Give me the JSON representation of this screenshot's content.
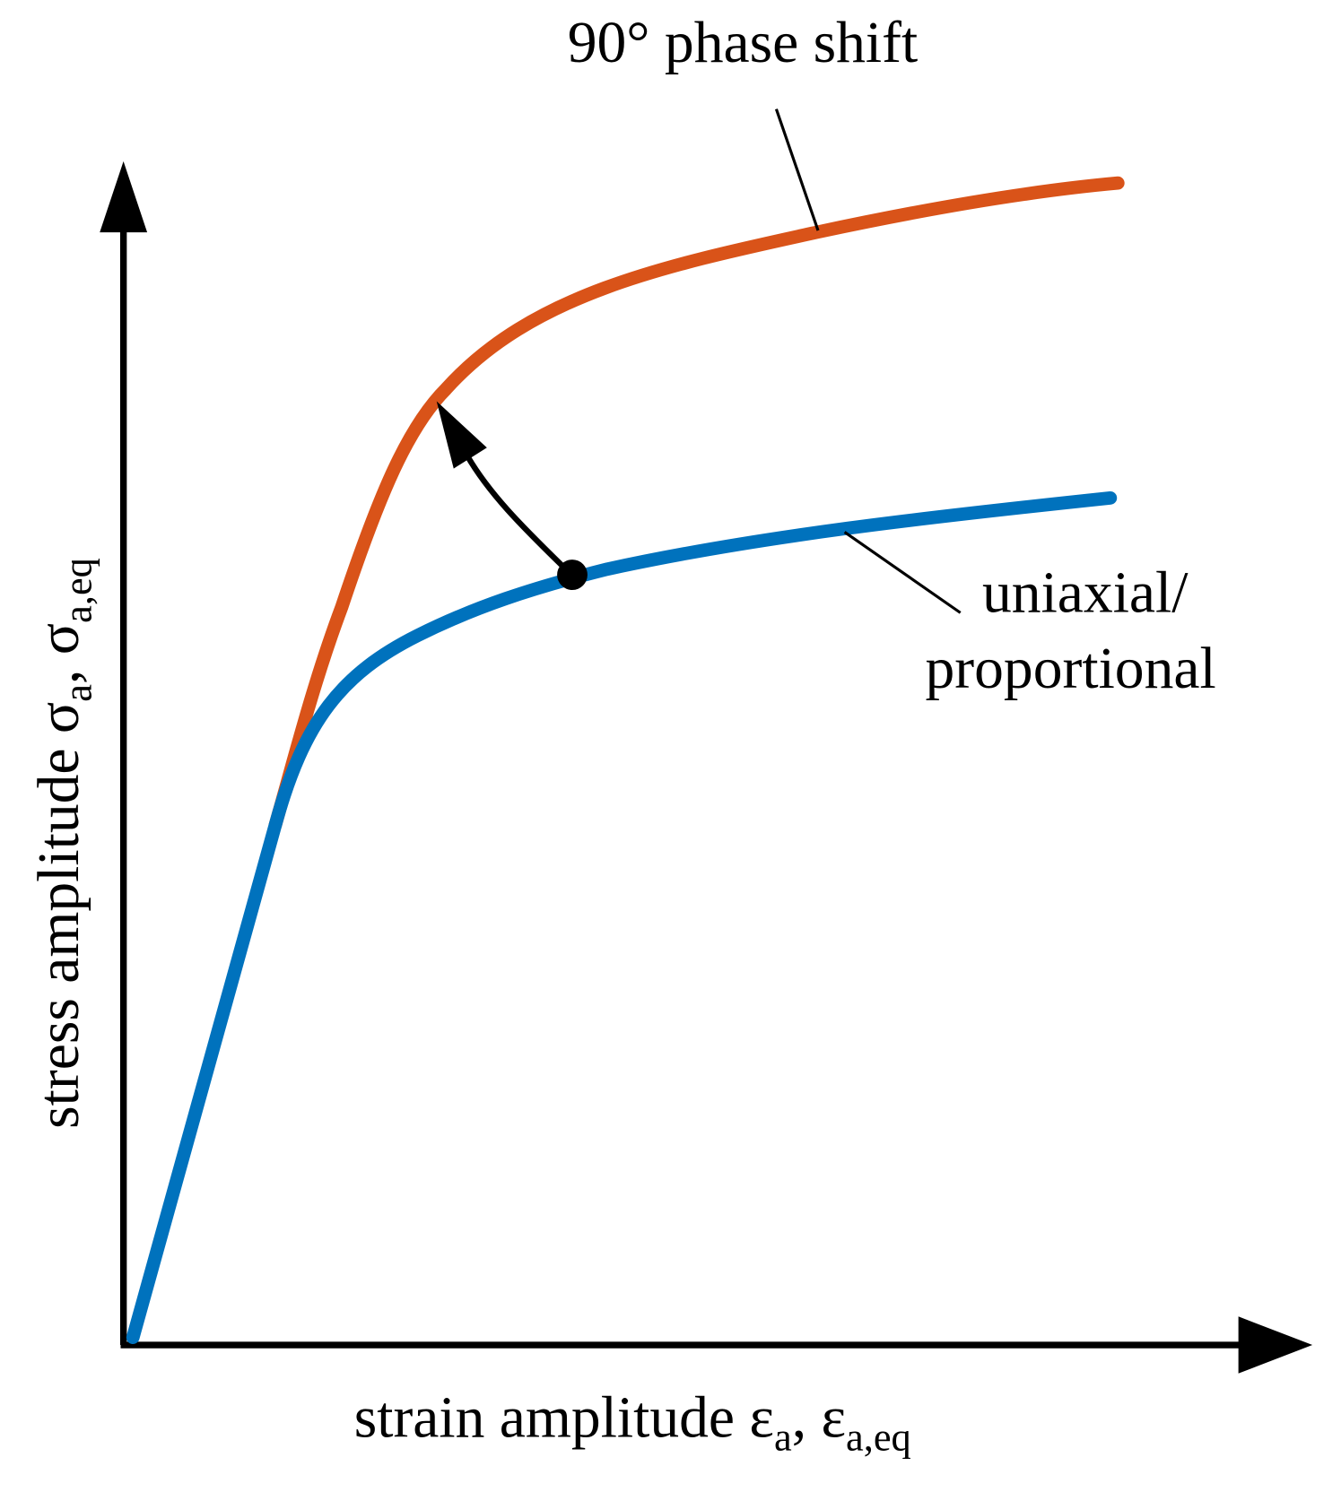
{
  "annotations": {
    "upper_curve": "90° phase shift",
    "lower_curve_line1": "uniaxial/",
    "lower_curve_line2": "proportional"
  },
  "y_axis_label": {
    "main": "stress amplitude σ",
    "sub1": "a",
    "sep": ", σ",
    "sub2": "a,eq"
  },
  "x_axis_label": {
    "main": "strain amplitude ε",
    "sub1": "a",
    "sep": ", ε",
    "sub2": "a,eq"
  }
}
